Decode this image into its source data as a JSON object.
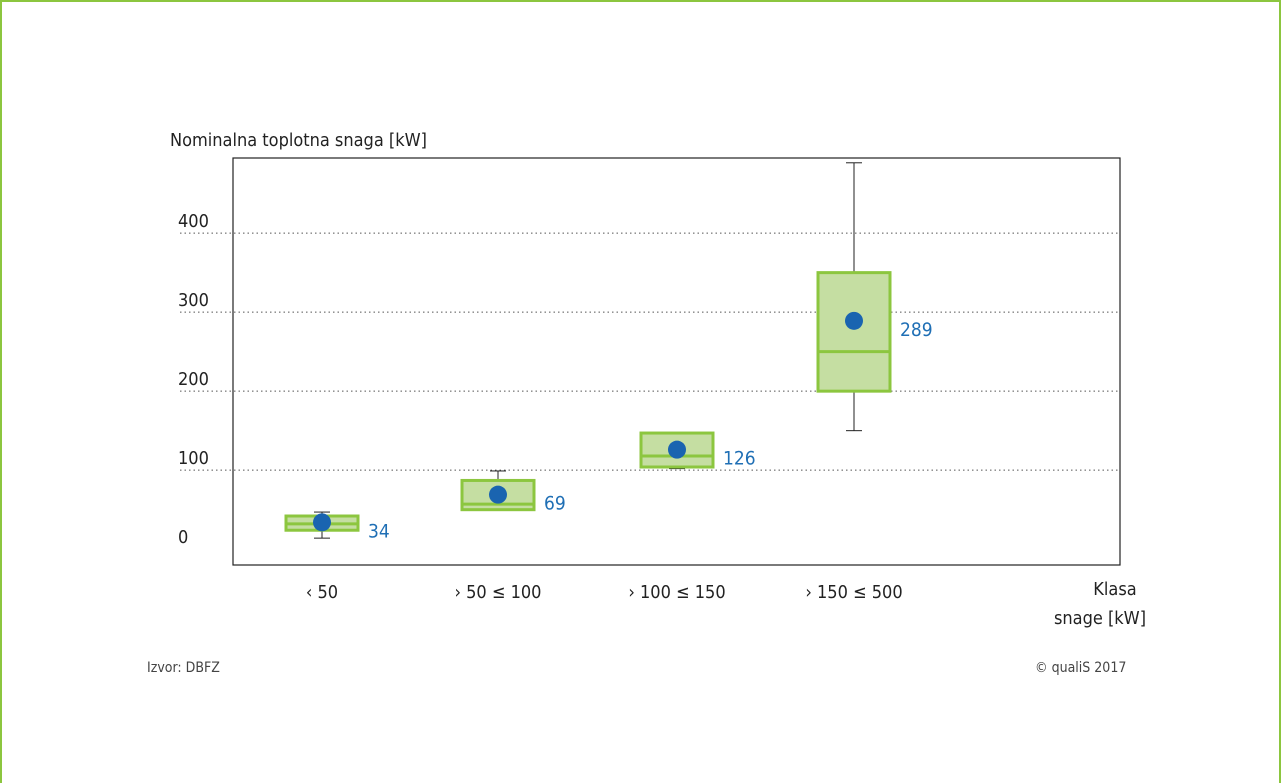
{
  "chart_data": {
    "type": "boxplot",
    "ylabel": "Nominalna toplotna snaga [kW]",
    "xlabel": "Klasa snage [kW]",
    "xlabel_lines": [
      "Klasa",
      "snage [kW]"
    ],
    "yticks": [
      0,
      100,
      200,
      300,
      400
    ],
    "ylim": [
      -20,
      490
    ],
    "grid": "horizontal dotted",
    "categories": [
      "‹ 50",
      "› 50 ≤ 100",
      "› 100 ≤ 150",
      "› 150 ≤ 500"
    ],
    "boxes": [
      {
        "category": "‹ 50",
        "whisker_low": 14,
        "q1": 24,
        "median": 32,
        "q3": 42,
        "whisker_high": 47,
        "mean": 34,
        "mean_label": "34"
      },
      {
        "category": "› 50 ≤ 100",
        "whisker_low": 50,
        "q1": 50,
        "median": 57,
        "q3": 87,
        "whisker_high": 99,
        "mean": 69,
        "mean_label": "69"
      },
      {
        "category": "› 100 ≤ 150",
        "whisker_low": 102,
        "q1": 104,
        "median": 118,
        "q3": 147,
        "whisker_high": 147,
        "mean": 126,
        "mean_label": "126"
      },
      {
        "category": "› 150 ≤ 500",
        "whisker_low": 150,
        "q1": 200,
        "median": 250,
        "q3": 350,
        "whisker_high": 489,
        "mean": 289,
        "mean_label": "289"
      }
    ],
    "colors": {
      "box_fill": "#c5dea2",
      "box_stroke": "#8cc63f",
      "mean": "#1a64b0",
      "mean_label": "#1f6fb5",
      "grid": "#555555"
    }
  },
  "footer": {
    "source": "Izvor: DBFZ",
    "copyright": "© qualiS 2017"
  }
}
